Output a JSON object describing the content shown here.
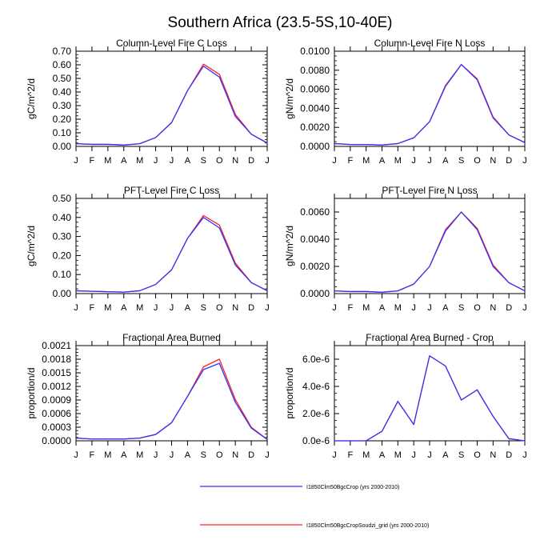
{
  "title": "Southern Africa (23.5-5S,10-40E)",
  "months": [
    "J",
    "F",
    "M",
    "A",
    "M",
    "J",
    "J",
    "A",
    "S",
    "O",
    "N",
    "D",
    "J"
  ],
  "colors": {
    "series1": "#3333ff",
    "series2": "#ff2222"
  },
  "legend": {
    "placement": "bottom-center",
    "items": [
      "I1850Clm50BgcCrop (yrs 2000-2010)",
      "I1850Clm50BgcCropSoudzi_grid (yrs 2000-2010)"
    ]
  },
  "chart_data": [
    {
      "type": "line",
      "title": "Column-Level Fire C Loss",
      "ylabel": "gC/m^2/d",
      "ylim": [
        0,
        0.7
      ],
      "yticks": [
        0,
        0.1,
        0.2,
        0.3,
        0.4,
        0.5,
        0.6,
        0.7
      ],
      "yticklabels": [
        "0.00",
        "0.10",
        "0.20",
        "0.30",
        "0.40",
        "0.50",
        "0.60",
        "0.70"
      ],
      "series": [
        {
          "name": "I1850Clm50BgcCrop (yrs 2000-2010)",
          "values": [
            0.02,
            0.015,
            0.015,
            0.01,
            0.02,
            0.065,
            0.175,
            0.41,
            0.59,
            0.51,
            0.22,
            0.09,
            0.025
          ]
        },
        {
          "name": "I1850Clm50BgcCropSoudzi_grid (yrs 2000-2010)",
          "values": [
            0.02,
            0.015,
            0.015,
            0.01,
            0.02,
            0.065,
            0.175,
            0.41,
            0.605,
            0.53,
            0.235,
            0.09,
            0.025
          ]
        }
      ]
    },
    {
      "type": "line",
      "title": "Column-Level Fire N Loss",
      "ylabel": "gN/m^2/d",
      "ylim": [
        0,
        0.01
      ],
      "yticks": [
        0,
        0.002,
        0.004,
        0.006,
        0.008,
        0.01
      ],
      "yticklabels": [
        "0.0000",
        "0.0020",
        "0.0040",
        "0.0060",
        "0.0080",
        "0.0100"
      ],
      "series": [
        {
          "name": "I1850Clm50BgcCrop (yrs 2000-2010)",
          "values": [
            0.0003,
            0.0002,
            0.0002,
            0.00015,
            0.0003,
            0.0009,
            0.0026,
            0.0063,
            0.0086,
            0.007,
            0.003,
            0.0012,
            0.0004
          ]
        },
        {
          "name": "I1850Clm50BgcCropSoudzi_grid (yrs 2000-2010)",
          "values": [
            0.0003,
            0.0002,
            0.0002,
            0.00015,
            0.0003,
            0.0009,
            0.0026,
            0.0064,
            0.0086,
            0.0071,
            0.0031,
            0.0012,
            0.0004
          ]
        }
      ]
    },
    {
      "type": "line",
      "title": "PFT-Level Fire C Loss",
      "ylabel": "gC/m^2/d",
      "ylim": [
        0,
        0.5
      ],
      "yticks": [
        0,
        0.1,
        0.2,
        0.3,
        0.4,
        0.5
      ],
      "yticklabels": [
        "0.00",
        "0.10",
        "0.20",
        "0.30",
        "0.40",
        "0.50"
      ],
      "series": [
        {
          "name": "I1850Clm50BgcCrop (yrs 2000-2010)",
          "values": [
            0.015,
            0.012,
            0.01,
            0.008,
            0.015,
            0.048,
            0.125,
            0.29,
            0.4,
            0.345,
            0.15,
            0.058,
            0.015
          ]
        },
        {
          "name": "I1850Clm50BgcCropSoudzi_grid (yrs 2000-2010)",
          "values": [
            0.015,
            0.012,
            0.01,
            0.008,
            0.015,
            0.048,
            0.125,
            0.29,
            0.41,
            0.36,
            0.16,
            0.058,
            0.015
          ]
        }
      ]
    },
    {
      "type": "line",
      "title": "PFT-Level Fire N Loss",
      "ylabel": "gN/m^2/d",
      "ylim": [
        0,
        0.007
      ],
      "yticks": [
        0,
        0.002,
        0.004,
        0.006
      ],
      "yticklabels": [
        "0.0000",
        "0.0020",
        "0.0040",
        "0.0060"
      ],
      "series": [
        {
          "name": "I1850Clm50BgcCrop (yrs 2000-2010)",
          "values": [
            0.0002,
            0.00015,
            0.00015,
            0.0001,
            0.0002,
            0.0007,
            0.002,
            0.0046,
            0.006,
            0.0047,
            0.002,
            0.0008,
            0.0002
          ]
        },
        {
          "name": "I1850Clm50BgcCropSoudzi_grid (yrs 2000-2010)",
          "values": [
            0.0002,
            0.00015,
            0.00015,
            0.0001,
            0.0002,
            0.0007,
            0.002,
            0.0047,
            0.006,
            0.0048,
            0.0021,
            0.0008,
            0.0002
          ]
        }
      ]
    },
    {
      "type": "line",
      "title": "Fractional Area Burned",
      "ylabel": "proportion/d",
      "ylim": [
        0,
        0.0021
      ],
      "yticks": [
        0,
        0.0003,
        0.0006,
        0.0009,
        0.0012,
        0.0015,
        0.0018,
        0.0021
      ],
      "yticklabels": [
        "0.0000",
        "0.0003",
        "0.0006",
        "0.0009",
        "0.0012",
        "0.0015",
        "0.0018",
        "0.0021"
      ],
      "series": [
        {
          "name": "I1850Clm50BgcCrop (yrs 2000-2010)",
          "values": [
            6e-05,
            4e-05,
            4e-05,
            4e-05,
            6e-05,
            0.00014,
            0.0004,
            0.00098,
            0.00157,
            0.00171,
            0.00085,
            0.00028,
            3e-05
          ]
        },
        {
          "name": "I1850Clm50BgcCropSoudzi_grid (yrs 2000-2010)",
          "values": [
            6e-05,
            4e-05,
            4e-05,
            4e-05,
            6e-05,
            0.00014,
            0.0004,
            0.00098,
            0.00163,
            0.0018,
            0.00091,
            0.0003,
            3e-05
          ]
        }
      ]
    },
    {
      "type": "line",
      "title": "Fractional Area Burned - Crop",
      "ylabel": "proportion/d",
      "ylim": [
        0,
        7e-06
      ],
      "yticks": [
        0,
        2e-06,
        4e-06,
        6e-06
      ],
      "yticklabels": [
        "0.0e-6",
        "2.0e-6",
        "4.0e-6",
        "6.0e-6"
      ],
      "series": [
        {
          "name": "I1850Clm50BgcCrop (yrs 2000-2010)",
          "values": [
            0,
            0,
            0,
            7e-07,
            2.9e-06,
            1.2e-06,
            6.25e-06,
            5.5e-06,
            3e-06,
            3.75e-06,
            1.8e-06,
            1.5e-07,
            0
          ]
        },
        {
          "name": "I1850Clm50BgcCropSoudzi_grid (yrs 2000-2010)",
          "values": [
            0,
            0,
            0,
            7e-07,
            2.9e-06,
            1.2e-06,
            6.25e-06,
            5.5e-06,
            3e-06,
            3.75e-06,
            1.8e-06,
            1.5e-07,
            0
          ]
        }
      ]
    }
  ]
}
